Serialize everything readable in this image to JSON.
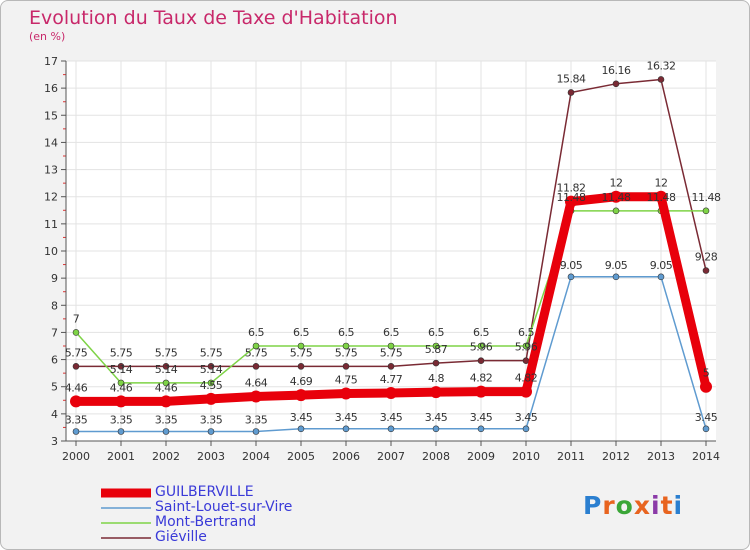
{
  "title": "Evolution du Taux de Taxe d'Habitation",
  "subtitle": "(en %)",
  "logo": {
    "text": "Proxiti",
    "colors": [
      "#2b7fd0",
      "#e8641f",
      "#3aa637",
      "#e8641f",
      "#8b3aa8",
      "#e8641f",
      "#2b7fd0"
    ]
  },
  "chart_data": {
    "type": "line",
    "x": [
      "2000",
      "2001",
      "2002",
      "2003",
      "2004",
      "2005",
      "2006",
      "2007",
      "2008",
      "2009",
      "2010",
      "2011",
      "2012",
      "2013",
      "2014"
    ],
    "ylim": [
      3,
      17
    ],
    "yticks": [
      "3",
      "4",
      "5",
      "6",
      "7",
      "8",
      "9",
      "10",
      "11",
      "12",
      "13",
      "14",
      "15",
      "16",
      "17"
    ],
    "grid": true,
    "legend_position": "bottom-left",
    "series": [
      {
        "name": "GUILBERVILLE",
        "color": "#e8000b",
        "values": [
          4.46,
          4.46,
          4.46,
          4.55,
          4.64,
          4.69,
          4.75,
          4.77,
          4.8,
          4.82,
          4.82,
          11.82,
          12,
          12,
          5
        ],
        "labels": [
          "4.46",
          "4.46",
          "4.46",
          "4.55",
          "4.64",
          "4.69",
          "4.75",
          "4.77",
          "4.8",
          "4.82",
          "4.82",
          "11.82",
          "12",
          "12",
          "5"
        ]
      },
      {
        "name": "Saint-Louet-sur-Vire",
        "color": "#5f9bd0",
        "values": [
          3.35,
          3.35,
          3.35,
          3.35,
          3.35,
          3.45,
          3.45,
          3.45,
          3.45,
          3.45,
          3.45,
          9.05,
          9.05,
          9.05,
          3.45
        ],
        "labels": [
          "3.35",
          "3.35",
          "3.35",
          "3.35",
          "3.35",
          "3.45",
          "3.45",
          "3.45",
          "3.45",
          "3.45",
          "3.45",
          "9.05",
          "9.05",
          "9.05",
          "3.45"
        ]
      },
      {
        "name": "Mont-Bertrand",
        "color": "#7ed346",
        "values": [
          7,
          5.14,
          5.14,
          5.14,
          6.5,
          6.5,
          6.5,
          6.5,
          6.5,
          6.5,
          6.5,
          11.48,
          11.48,
          11.48,
          11.48
        ],
        "labels": [
          "7",
          "5.14",
          "5.14",
          "5.14",
          "6.5",
          "6.5",
          "6.5",
          "6.5",
          "6.5",
          "6.5",
          "6.5",
          "11.48",
          "11.48",
          "11.48",
          "11.48"
        ]
      },
      {
        "name": "Giéville",
        "color": "#7a2a34",
        "values": [
          5.75,
          5.75,
          5.75,
          5.75,
          5.75,
          5.75,
          5.75,
          5.75,
          5.87,
          5.96,
          5.96,
          15.84,
          16.16,
          16.32,
          9.28
        ],
        "labels": [
          "5.75",
          "5.75",
          "5.75",
          "5.75",
          "5.75",
          "5.75",
          "5.75",
          "5.75",
          "5.87",
          "5.96",
          "5.96",
          "15.84",
          "16.16",
          "16.32",
          "9.28"
        ]
      }
    ]
  }
}
